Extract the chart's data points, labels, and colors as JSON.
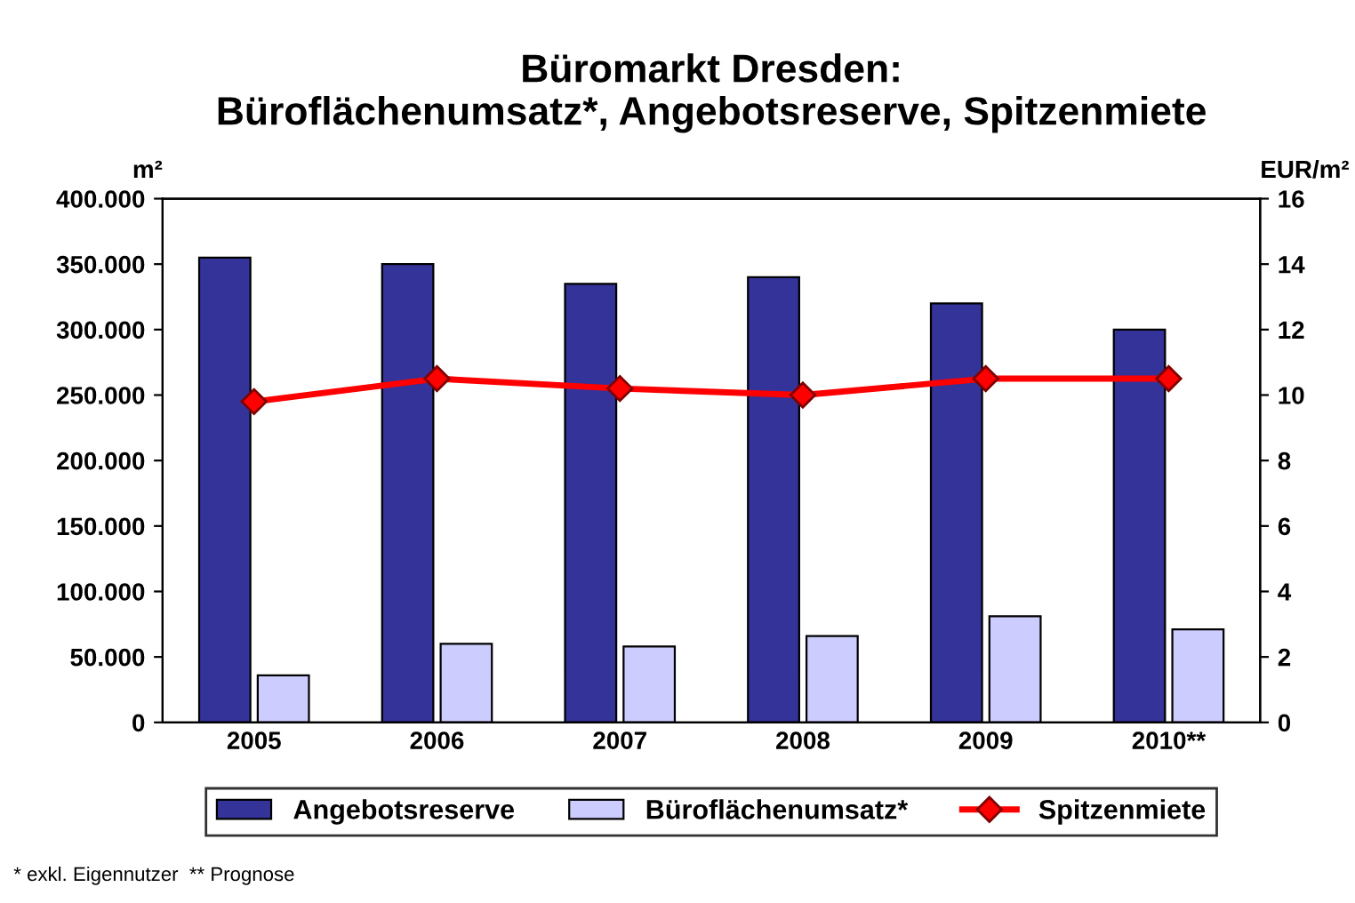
{
  "chart_data": {
    "type": "bar",
    "title": "Büromarkt Dresden:\nBüroflächenumsatz*, Angebotsreserve, Spitzenmiete",
    "ylabel": "m²",
    "y2label": "EUR/m²",
    "categories": [
      "2005",
      "2006",
      "2007",
      "2008",
      "2009",
      "2010**"
    ],
    "series": [
      {
        "name": "Angebotsreserve",
        "color": "#333399",
        "values": [
          355000,
          350000,
          335000,
          340000,
          320000,
          300000
        ]
      },
      {
        "name": "Büroflächenumsatz*",
        "color": "#ccccff",
        "values": [
          36000,
          60000,
          58000,
          66000,
          81000,
          71000
        ]
      },
      {
        "name": "Spitzenmiete",
        "type": "line",
        "axis": "y2",
        "color": "#ff0000",
        "marker": "diamond",
        "values": [
          9.8,
          10.5,
          10.2,
          10.0,
          10.5,
          10.5
        ]
      }
    ],
    "ylim": [
      0,
      400000
    ],
    "yticks": [
      {
        "value": 0,
        "label": "0"
      },
      {
        "value": 50000,
        "label": "50.000"
      },
      {
        "value": 100000,
        "label": "100.000"
      },
      {
        "value": 150000,
        "label": "150.000"
      },
      {
        "value": 200000,
        "label": "200.000"
      },
      {
        "value": 250000,
        "label": "250.000"
      },
      {
        "value": 300000,
        "label": "300.000"
      },
      {
        "value": 350000,
        "label": "350.000"
      },
      {
        "value": 400000,
        "label": "400.000"
      }
    ],
    "y2lim": [
      0,
      16
    ],
    "y2ticks": [
      0,
      2,
      4,
      6,
      8,
      10,
      12,
      14,
      16
    ],
    "legend": "bottom",
    "grid": false,
    "annotations": [
      "* exkl. Eigennutzer  ** Prognose"
    ]
  }
}
